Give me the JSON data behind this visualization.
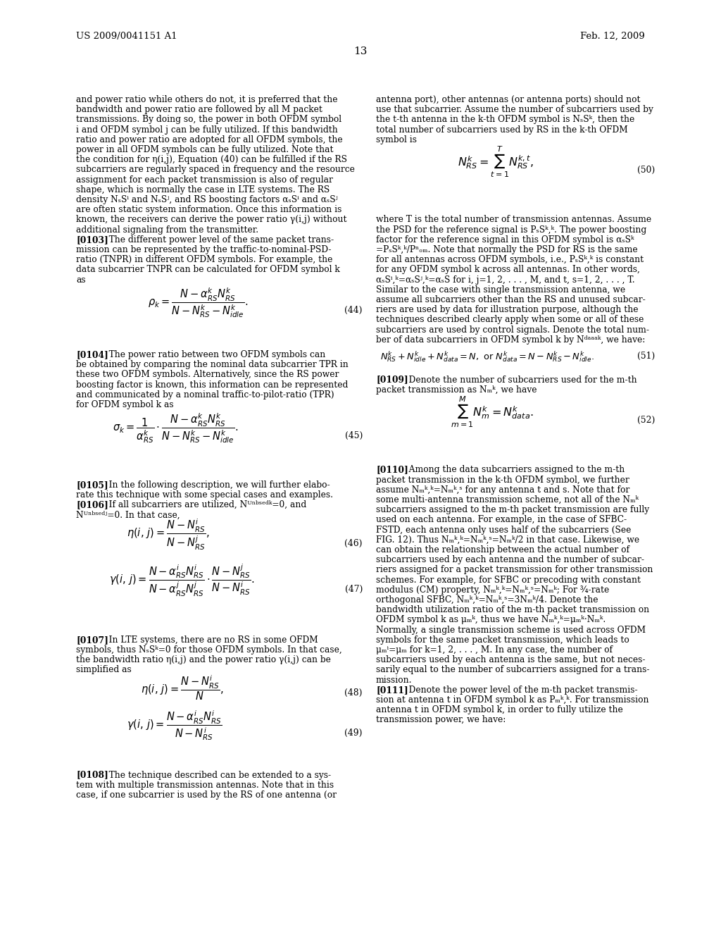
{
  "header_left": "US 2009/0041151 A1",
  "header_right": "Feb. 12, 2009",
  "page_number": "13",
  "background_color": "#ffffff",
  "text_color": "#000000",
  "body_fontsize": 8.8,
  "header_fontsize": 9.5,
  "page_fontsize": 11,
  "eq_fontsize": 10.5
}
